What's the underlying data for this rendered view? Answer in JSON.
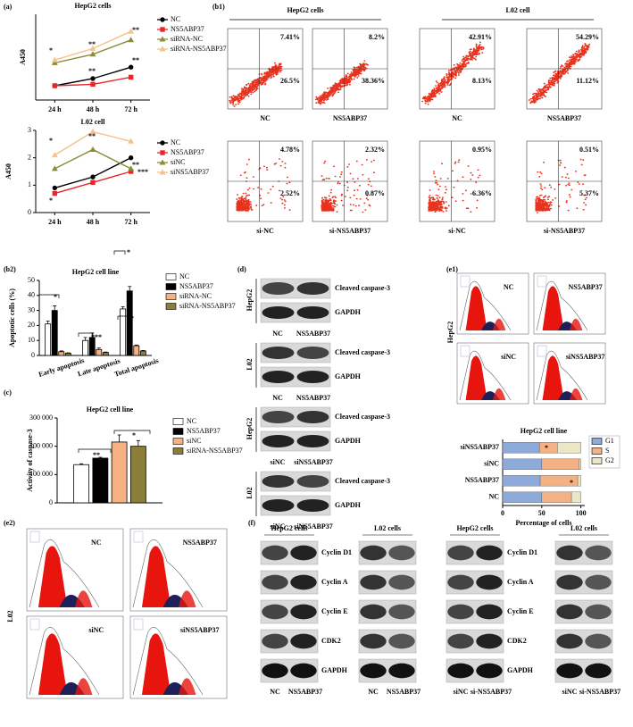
{
  "panel_labels": [
    "(a)",
    "(b1)",
    "(b2)",
    "(c)",
    "(d)",
    "(e1)",
    "(e2)",
    "(f)"
  ],
  "chart_data": [
    {
      "type": "line",
      "title": "HepG2 cells",
      "y_label": "A450",
      "categories": [
        "24 h",
        "48 h",
        "72 h"
      ],
      "ylim": [
        0,
        3
      ],
      "legend": "right",
      "annotations": [
        "*",
        "**",
        "**",
        "**",
        "**"
      ],
      "series": [
        {
          "name": "NC",
          "color": "#000000",
          "values": [
            0.5,
            0.75,
            1.15
          ]
        },
        {
          "name": "NS5ABP37",
          "color": "#e8262b",
          "values": [
            0.5,
            0.55,
            0.8
          ]
        },
        {
          "name": "siRNA-NC",
          "color": "#8b8b3a",
          "values": [
            1.3,
            1.6,
            2.1
          ]
        },
        {
          "name": "siRNA-NS5ABP37",
          "color": "#f5c28a",
          "values": [
            1.4,
            1.8,
            2.4
          ]
        }
      ]
    },
    {
      "type": "line",
      "title": "L02 cell",
      "y_label": "A450",
      "categories": [
        "24 h",
        "48 h",
        "72 h"
      ],
      "ylim": [
        0,
        3
      ],
      "yticks": [
        0,
        1,
        2,
        3
      ],
      "legend": "right",
      "annotations": [
        "*",
        "**",
        "**",
        "*",
        "***"
      ],
      "series": [
        {
          "name": "NC",
          "color": "#000000",
          "values": [
            0.9,
            1.3,
            2.0
          ]
        },
        {
          "name": "NS5ABP37",
          "color": "#e8262b",
          "values": [
            0.7,
            1.1,
            1.5
          ]
        },
        {
          "name": "siNC",
          "color": "#8b8b3a",
          "values": [
            1.6,
            2.3,
            1.6
          ]
        },
        {
          "name": "siNS5ABP37",
          "color": "#f5c28a",
          "values": [
            2.1,
            2.95,
            2.6
          ]
        }
      ]
    },
    {
      "type": "bar",
      "title": "HepG2 cell line",
      "y_label": "Apoptotic cells (%)",
      "categories": [
        "Early apoptosis",
        "Late apoptosis",
        "Total apoptosis"
      ],
      "ylim": [
        0,
        50
      ],
      "yticks": [
        0,
        10,
        20,
        30,
        40,
        50
      ],
      "legend": "right",
      "annotations": [
        "*",
        "***",
        "*",
        "*"
      ],
      "series": [
        {
          "name": "NC",
          "color": "#ffffff",
          "values": [
            21,
            10,
            31
          ],
          "errors": [
            2,
            2,
            1.5
          ]
        },
        {
          "name": "NS5ABP37",
          "color": "#000000",
          "values": [
            30,
            12,
            43
          ],
          "errors": [
            3,
            3,
            3
          ]
        },
        {
          "name": "siRNA-NC",
          "color": "#f4b183",
          "values": [
            2.5,
            4,
            6.5
          ],
          "errors": [
            0.5,
            1,
            0.5
          ]
        },
        {
          "name": "siRNA-NS5ABP37",
          "color": "#8b7d3a",
          "values": [
            1.5,
            2,
            3
          ],
          "errors": [
            0.3,
            0.3,
            0.3
          ]
        }
      ]
    },
    {
      "type": "bar",
      "title": "HepG2 cell line",
      "y_label": "Activity of caspase-3",
      "categories": [
        null
      ],
      "ylim": [
        0,
        300000
      ],
      "yticks": [
        0,
        {
          "value": 100000,
          "label": "100 000"
        },
        {
          "value": 200000,
          "label": "200 000"
        },
        {
          "value": 300000,
          "label": "300 000"
        }
      ],
      "legend": "right",
      "annotations": [
        "**",
        "*"
      ],
      "series": [
        {
          "name": "NC",
          "color": "#ffffff",
          "values": [
            135000
          ],
          "errors": [
            3000
          ]
        },
        {
          "name": "NS5ABP37",
          "color": "#000000",
          "values": [
            158000
          ],
          "errors": [
            3000
          ]
        },
        {
          "name": "siNC",
          "color": "#f4b183",
          "values": [
            215000
          ],
          "errors": [
            25000
          ]
        },
        {
          "name": "siRNA-NS5ABP37",
          "color": "#8b7d3a",
          "values": [
            200000
          ],
          "errors": [
            20000
          ]
        }
      ]
    },
    {
      "type": "stacked_bar_h",
      "title": "HepG2 cell line",
      "x_label": "Percentage of cells",
      "categories": [
        "NC",
        "NS5ABP37",
        "siNC",
        "siNS5ABP37"
      ],
      "xlim": [
        0,
        105
      ],
      "xticks": [
        0,
        50,
        100
      ],
      "legend": "right",
      "annotations": [
        "*",
        "*"
      ],
      "series": [
        {
          "name": "G1",
          "color": "#8eaadb",
          "values": [
            50,
            48,
            50,
            47
          ]
        },
        {
          "name": "S",
          "color": "#f4b183",
          "values": [
            38,
            48,
            48,
            23
          ]
        },
        {
          "name": "G2",
          "color": "#ece6c8",
          "values": [
            12,
            4,
            2,
            30
          ]
        }
      ]
    }
  ],
  "flow": {
    "groups": [
      {
        "title": "HepG2 cells",
        "plots": [
          {
            "label": "NC",
            "upper": "7.41%",
            "lower": "26.5%"
          },
          {
            "label": "NS5ABP37",
            "upper": "8.2%",
            "lower": "38.36%"
          },
          {
            "label": "si-NC",
            "upper": "4.78%",
            "lower": "2.52%"
          },
          {
            "label": "si-NS5ABP37",
            "upper": "2.32%",
            "lower": "0.87%"
          }
        ]
      },
      {
        "title": "L02 cell",
        "plots": [
          {
            "label": "NC",
            "upper": "42.91%",
            "lower": "8.13%"
          },
          {
            "label": "NS5ABP37",
            "upper": "54.29%",
            "lower": "11.12%"
          },
          {
            "label": "si-NC",
            "upper": "0.95%",
            "lower": "6.36%"
          },
          {
            "label": "si-NS5ABP37",
            "upper": "0.51%",
            "lower": "5.37%"
          }
        ]
      }
    ]
  },
  "western_d": {
    "blocks": [
      {
        "cell": "HepG2",
        "bands": [
          "Cleaved caspase-3",
          "GAPDH"
        ],
        "lanes": [
          "NC",
          "NS5ABP37"
        ]
      },
      {
        "cell": "L02",
        "bands": [
          "Cleaved caspase-3",
          "GAPDH"
        ],
        "lanes": [
          "NC",
          "NS5ABP37"
        ]
      },
      {
        "cell": "HepG2",
        "bands": [
          "Cleaved caspase-3",
          "GAPDH"
        ],
        "lanes": [
          "siNC",
          "siNS5ABP37"
        ]
      },
      {
        "cell": "L02",
        "bands": [
          "Cleaved caspase-3",
          "GAPDH"
        ],
        "lanes": [
          "siNC",
          "siNS5ABP37"
        ]
      }
    ]
  },
  "histograms": {
    "e1": {
      "cell": "HepG2",
      "labels": [
        "NC",
        "NS5ABP37",
        "siNC",
        "siNS5ABP37"
      ]
    },
    "e2": {
      "cell": "L02",
      "labels": [
        "NC",
        "NS5ABP37",
        "siNC",
        "siNS5ABP37"
      ]
    }
  },
  "western_f": {
    "bands": [
      "Cyclin D1",
      "Cyclin A",
      "Cyclin E",
      "CDK2",
      "GAPDH"
    ],
    "groups": [
      {
        "cell": "HepG2 cells",
        "lanes": [
          "NC",
          "NS5ABP37"
        ]
      },
      {
        "cell": "L02 cells",
        "lanes": [
          "NC",
          "NS5ABP37"
        ]
      },
      {
        "cell": "HepG2 cells",
        "lanes": [
          "siNC",
          "si-NS5ABP37"
        ]
      },
      {
        "cell": "L02 cells",
        "lanes": [
          "siNC",
          "si-NS5ABP37"
        ]
      }
    ]
  }
}
